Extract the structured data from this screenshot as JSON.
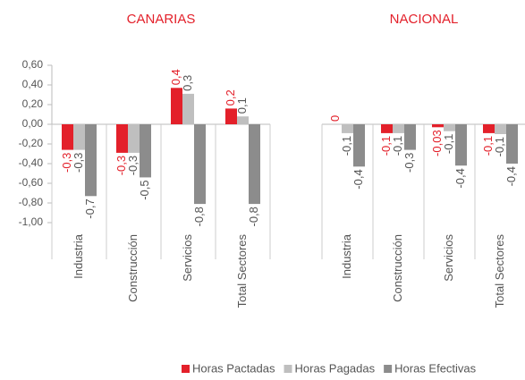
{
  "chart_data": {
    "type": "bar",
    "ylim": [
      -1.0,
      0.6
    ],
    "yticks": [
      {
        "value": 0.6,
        "label": "0,60"
      },
      {
        "value": 0.4,
        "label": "0,40"
      },
      {
        "value": 0.2,
        "label": "0,20"
      },
      {
        "value": 0,
        "label": "0,00"
      },
      {
        "value": -0.2,
        "label": "-0,20"
      },
      {
        "value": -0.4,
        "label": "-0,40"
      },
      {
        "value": -0.6,
        "label": "-0,60"
      },
      {
        "value": -0.8,
        "label": "-0,80"
      },
      {
        "value": -1.0,
        "label": "-1,00"
      }
    ],
    "series": [
      {
        "name": "Horas Pactadas",
        "color": "#e3202a"
      },
      {
        "name": "Horas Pagadas",
        "color": "#bfbfbf"
      },
      {
        "name": "Horas Efectivas",
        "color": "#8c8c8c"
      }
    ],
    "panels": [
      {
        "title": "CANARIAS",
        "categories": [
          "Industria",
          "Construcción",
          "Servicios",
          "Total Sectores"
        ],
        "values": [
          [
            -0.26,
            -0.29,
            0.37,
            0.16
          ],
          [
            -0.26,
            -0.29,
            0.31,
            0.08
          ],
          [
            -0.73,
            -0.54,
            -0.81,
            -0.81
          ]
        ],
        "value_labels": [
          [
            "-0,3",
            "-0,3",
            "0,4",
            "0,2"
          ],
          [
            "-0,3",
            "-0,3",
            "0,3",
            "0,1"
          ],
          [
            "-0,7",
            "-0,5",
            "-0,8",
            "-0,8"
          ]
        ]
      },
      {
        "title": "NACIONAL",
        "categories": [
          "Industria",
          "Construcción",
          "Servicios",
          "Total Sectores"
        ],
        "values": [
          [
            0,
            -0.09,
            -0.03,
            -0.09
          ],
          [
            -0.09,
            -0.09,
            -0.07,
            -0.1
          ],
          [
            -0.43,
            -0.26,
            -0.42,
            -0.4
          ]
        ],
        "value_labels": [
          [
            "0",
            "-0,1",
            "-0,03",
            "-0,1"
          ],
          [
            "-0,1",
            "-0,1",
            "-0,1",
            "-0,1"
          ],
          [
            "-0,4",
            "-0,3",
            "-0,4",
            "-0,4"
          ]
        ]
      }
    ]
  }
}
